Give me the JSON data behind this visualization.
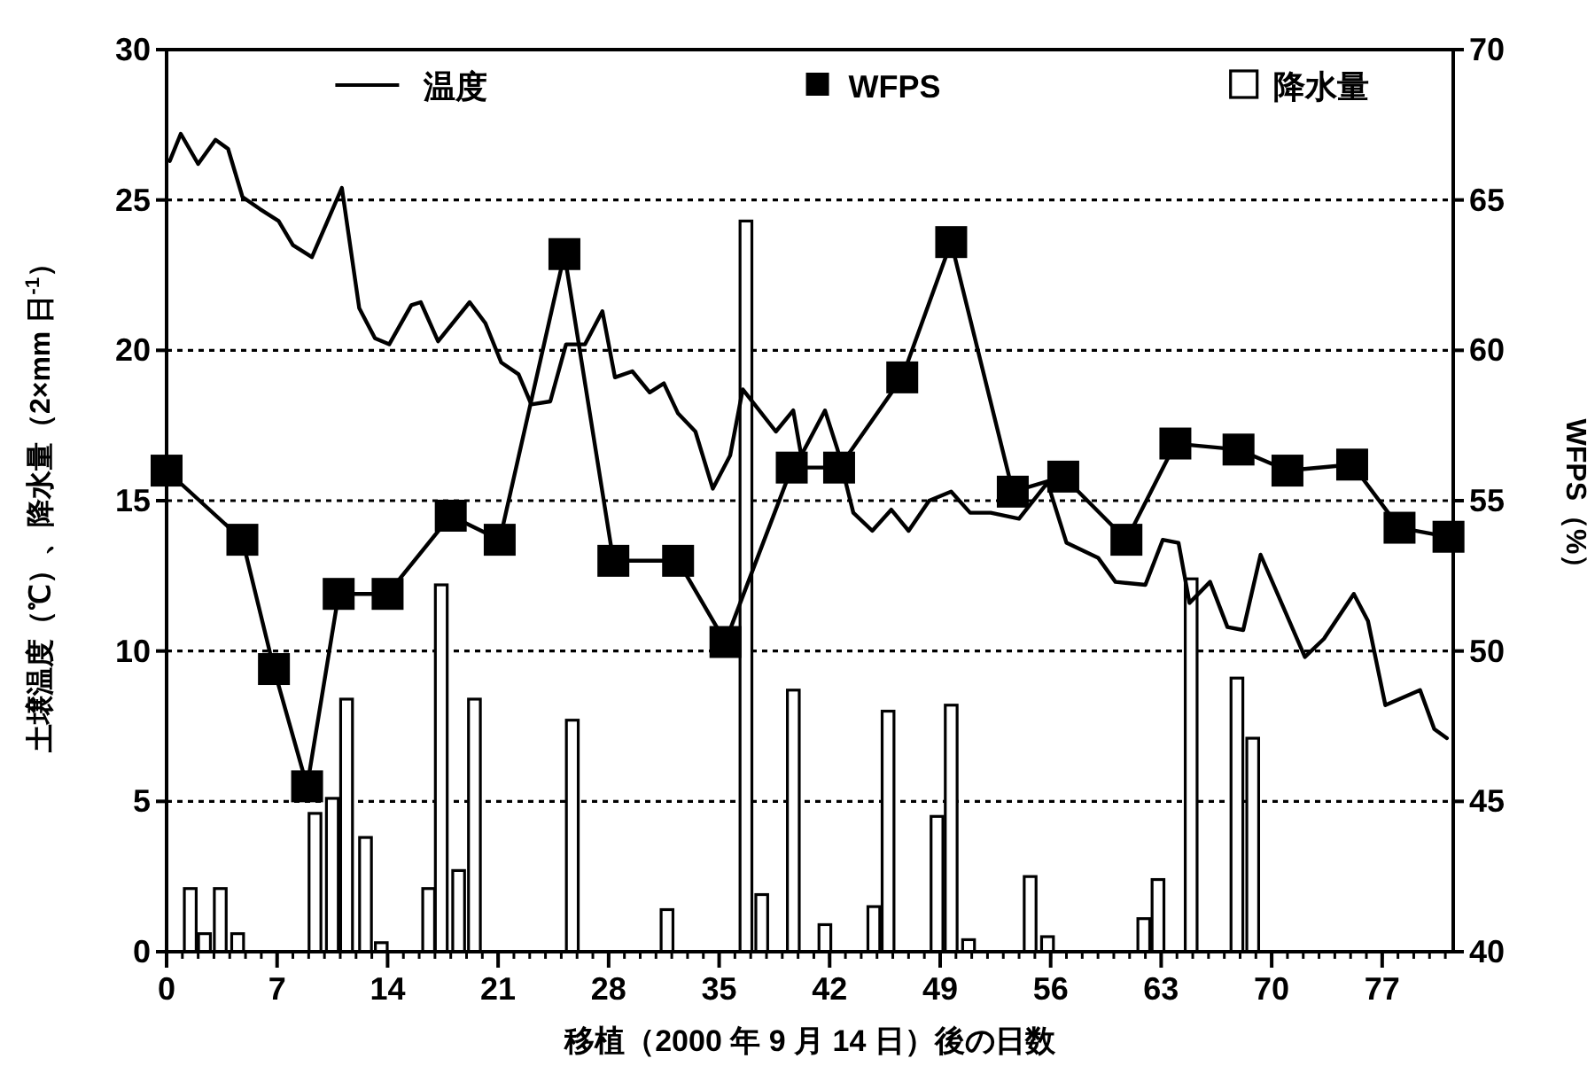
{
  "chart_data": {
    "type": "line",
    "xlabel": "移植（2000 年 9 月 14 日）後の日数",
    "ylabel": "土壌温度（℃）、降水量（2×mm 日$^{-1}$）",
    "y2label": "WFPS（%）",
    "xlim": [
      0,
      81.5
    ],
    "xticks": [
      0,
      7,
      14,
      21,
      28,
      35,
      42,
      49,
      56,
      63,
      70,
      77
    ],
    "ylim": [
      0,
      30
    ],
    "yticks": [
      0,
      5,
      10,
      15,
      20,
      25,
      30
    ],
    "y2lim": [
      40,
      70
    ],
    "y2ticks": [
      40,
      45,
      50,
      55,
      60,
      65,
      70
    ],
    "grid": "y",
    "legend": "top",
    "line_style": "solid",
    "series": [
      {
        "name": "温度",
        "marker": "none",
        "color": "#000000",
        "x": [
          0.2,
          0.9,
          2.0,
          3.1,
          3.9,
          4.8,
          5.9,
          7.1,
          8.0,
          9.2,
          11.1,
          12.2,
          13.2,
          14.1,
          15.5,
          16.1,
          17.2,
          19.2,
          20.2,
          21.2,
          22.3,
          23.1,
          24.3,
          25.3,
          26.5,
          27.6,
          28.4,
          29.5,
          30.6,
          31.5,
          32.4,
          33.5,
          34.6,
          35.7,
          36.5,
          38.6,
          39.7,
          40.2,
          41.7,
          42.5,
          43.5,
          44.7,
          45.9,
          47.0,
          48.3,
          49.7,
          50.9,
          52.2,
          54.0,
          55.8,
          57.0,
          59.0,
          60.1,
          62.0,
          63.1,
          64.1,
          64.8,
          66.1,
          67.2,
          68.2,
          69.3,
          72.1,
          73.3,
          75.2,
          76.1,
          77.2,
          79.4,
          80.3,
          81.1
        ],
        "values": [
          26.3,
          27.2,
          26.2,
          27.0,
          26.7,
          25.1,
          24.7,
          24.3,
          23.5,
          23.1,
          25.4,
          21.4,
          20.4,
          20.2,
          21.5,
          21.6,
          20.3,
          21.6,
          20.9,
          19.6,
          19.2,
          18.2,
          18.3,
          20.2,
          20.2,
          21.3,
          19.1,
          19.3,
          18.6,
          18.9,
          17.9,
          17.3,
          15.4,
          16.5,
          18.7,
          17.3,
          18.0,
          16.5,
          18.0,
          16.7,
          14.6,
          14.0,
          14.7,
          14.0,
          15.0,
          15.3,
          14.6,
          14.6,
          14.4,
          15.6,
          13.6,
          13.1,
          12.3,
          12.2,
          13.7,
          13.6,
          11.6,
          12.3,
          10.8,
          10.7,
          13.2,
          9.8,
          10.4,
          11.9,
          11.0,
          8.2,
          8.7,
          7.4,
          7.1
        ]
      },
      {
        "name": "WFPS",
        "axis": "y2",
        "marker": "square",
        "color": "#000000",
        "x": [
          0,
          4.8,
          6.8,
          8.9,
          10.9,
          14.0,
          18.0,
          21.1,
          25.2,
          28.3,
          32.4,
          35.4,
          39.6,
          42.6,
          46.6,
          49.7,
          53.6,
          56.8,
          60.8,
          63.9,
          67.9,
          71.0,
          75.1,
          78.1,
          81.2
        ],
        "values": [
          56.0,
          53.7,
          49.4,
          45.5,
          51.9,
          51.9,
          54.5,
          53.7,
          63.2,
          53.0,
          53.0,
          50.3,
          56.1,
          56.1,
          59.1,
          63.6,
          55.3,
          55.8,
          53.7,
          56.9,
          56.7,
          56.0,
          56.2,
          54.1,
          53.8
        ]
      },
      {
        "name": "降水量",
        "type": "bar",
        "color": "#ffffff",
        "x": [
          1.5,
          2.4,
          3.4,
          4.5,
          9.4,
          10.5,
          11.4,
          12.6,
          13.6,
          16.6,
          17.4,
          18.5,
          19.5,
          25.7,
          31.7,
          36.7,
          37.7,
          39.7,
          41.7,
          44.8,
          45.7,
          48.8,
          49.7,
          50.8,
          54.7,
          55.8,
          61.9,
          62.8,
          64.9,
          67.8,
          68.8
        ],
        "values": [
          2.1,
          0.6,
          2.1,
          0.6,
          4.6,
          5.1,
          8.4,
          3.8,
          0.3,
          2.1,
          12.2,
          2.7,
          8.4,
          7.7,
          1.4,
          24.3,
          1.9,
          8.7,
          0.9,
          1.5,
          8.0,
          4.5,
          8.2,
          0.4,
          2.5,
          0.5,
          1.1,
          2.4,
          12.4,
          9.1,
          7.1
        ]
      }
    ]
  }
}
